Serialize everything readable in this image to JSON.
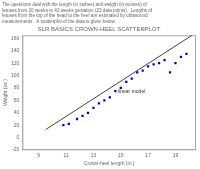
{
  "chart_data": {
    "type": "scatter",
    "title": "SLR BASICS CROWN-HEEL SCATTERPLOT",
    "subtitle": [
      "The questions deal with the length (in inches) and weight (in ounces) of",
      "fetuses from 20 weeks to 42 weeks gestation (23 data points).  Lengths of",
      "fetuses from the top of the head to the heel are estimated by ultrasound",
      "measurements.  A scatterplot of the data is given below."
    ],
    "x_label": "Crown-heel length (in.)",
    "y_label": "Weight (oz.)",
    "series": [
      {
        "type": "scatter",
        "color": "#0000cc",
        "marker": "square",
        "x": [
          10.8,
          11.2,
          11.8,
          12.2,
          12.6,
          13.0,
          13.4,
          13.8,
          14.2,
          14.6,
          15.0,
          15.4,
          15.8,
          16.2,
          16.6,
          17.0,
          17.4,
          17.8,
          18.2,
          18.6,
          19.0,
          19.4,
          19.8
        ],
        "values": [
          20,
          22,
          30,
          35,
          40,
          48,
          55,
          60,
          65,
          75,
          80,
          90,
          95,
          105,
          108,
          115,
          118,
          120,
          125,
          105,
          120,
          130,
          135
        ]
      },
      {
        "type": "line",
        "color": "#444444",
        "line_style": "solid",
        "x": [
          9.5,
          20.2
        ],
        "values": [
          12.9,
          164.84
        ]
      }
    ],
    "annotations": [
      {
        "text": "linear model",
        "x": 14.8,
        "y": 72
      }
    ],
    "xlim": [
      7.8,
      20.5
    ],
    "xticks": [
      9,
      11,
      13,
      15,
      17,
      19
    ],
    "ylim": [
      -20,
      165
    ],
    "yticks": [
      -20,
      0,
      20,
      40,
      60,
      80,
      100,
      120,
      140,
      160
    ],
    "grid": false,
    "legend": false
  }
}
